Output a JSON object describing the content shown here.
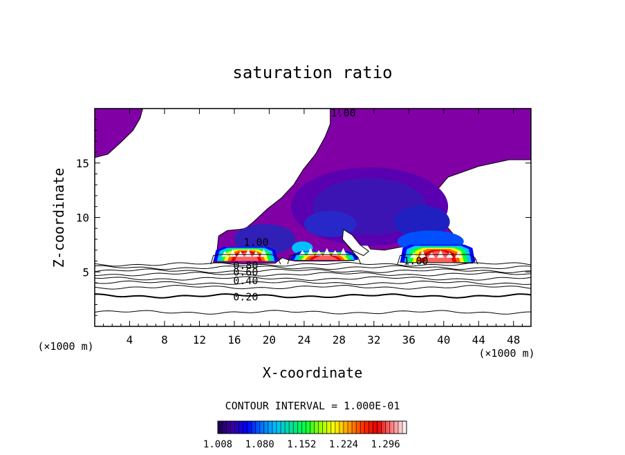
{
  "chart_data": {
    "type": "heatmap",
    "title": "saturation ratio",
    "xlabel": "X-coordinate",
    "ylabel": "Z-coordinate",
    "x_unit": "(×1000 m)",
    "x_unit_right": "(×1000 m)",
    "xlim": [
      0,
      50
    ],
    "ylim": [
      0,
      20
    ],
    "x_ticks": [
      4,
      8,
      12,
      16,
      20,
      24,
      28,
      32,
      36,
      40,
      44,
      48
    ],
    "y_ticks": [
      5,
      10,
      15
    ],
    "contour_interval_text": "CONTOUR INTERVAL = 1.000E-01",
    "colorbar": {
      "range": [
        1.008,
        1.332
      ],
      "tick_labels": [
        "1.008",
        "1.080",
        "1.152",
        "1.224",
        "1.296"
      ],
      "colors": [
        "#1c0050",
        "#3a00a0",
        "#0000ff",
        "#0070ff",
        "#00c0ff",
        "#00e0a0",
        "#00ff40",
        "#90ff00",
        "#ffff00",
        "#ffa000",
        "#ff3000",
        "#e80000",
        "#ff8080",
        "#ffffff"
      ]
    },
    "contour_labels": [
      {
        "text": "1.00",
        "x": 28.5,
        "y": 19.6
      },
      {
        "text": "1.00",
        "x": 18.5,
        "y": 7.7
      },
      {
        "text": "1.00",
        "x": 36.8,
        "y": 6.0
      },
      {
        "text": "0.80",
        "x": 17.3,
        "y": 5.6
      },
      {
        "text": "0.60",
        "x": 17.3,
        "y": 5.0
      },
      {
        "text": "0.40",
        "x": 17.3,
        "y": 4.2
      },
      {
        "text": "0.20",
        "x": 17.3,
        "y": 2.7
      }
    ],
    "supersaturated_region_value": 1.0,
    "cloud_cores": [
      {
        "x_center": 18.5,
        "x_range": [
          13.6,
          21.0
        ],
        "z_top": 7.3,
        "z_base": 5.9
      },
      {
        "x_center": 25.8,
        "x_range": [
          22.4,
          30.2
        ],
        "z_top": 6.9,
        "z_base": 6.0
      },
      {
        "x_center": 39.0,
        "x_range": [
          35.0,
          43.6
        ],
        "z_top": 7.5,
        "z_base": 5.8
      }
    ]
  }
}
